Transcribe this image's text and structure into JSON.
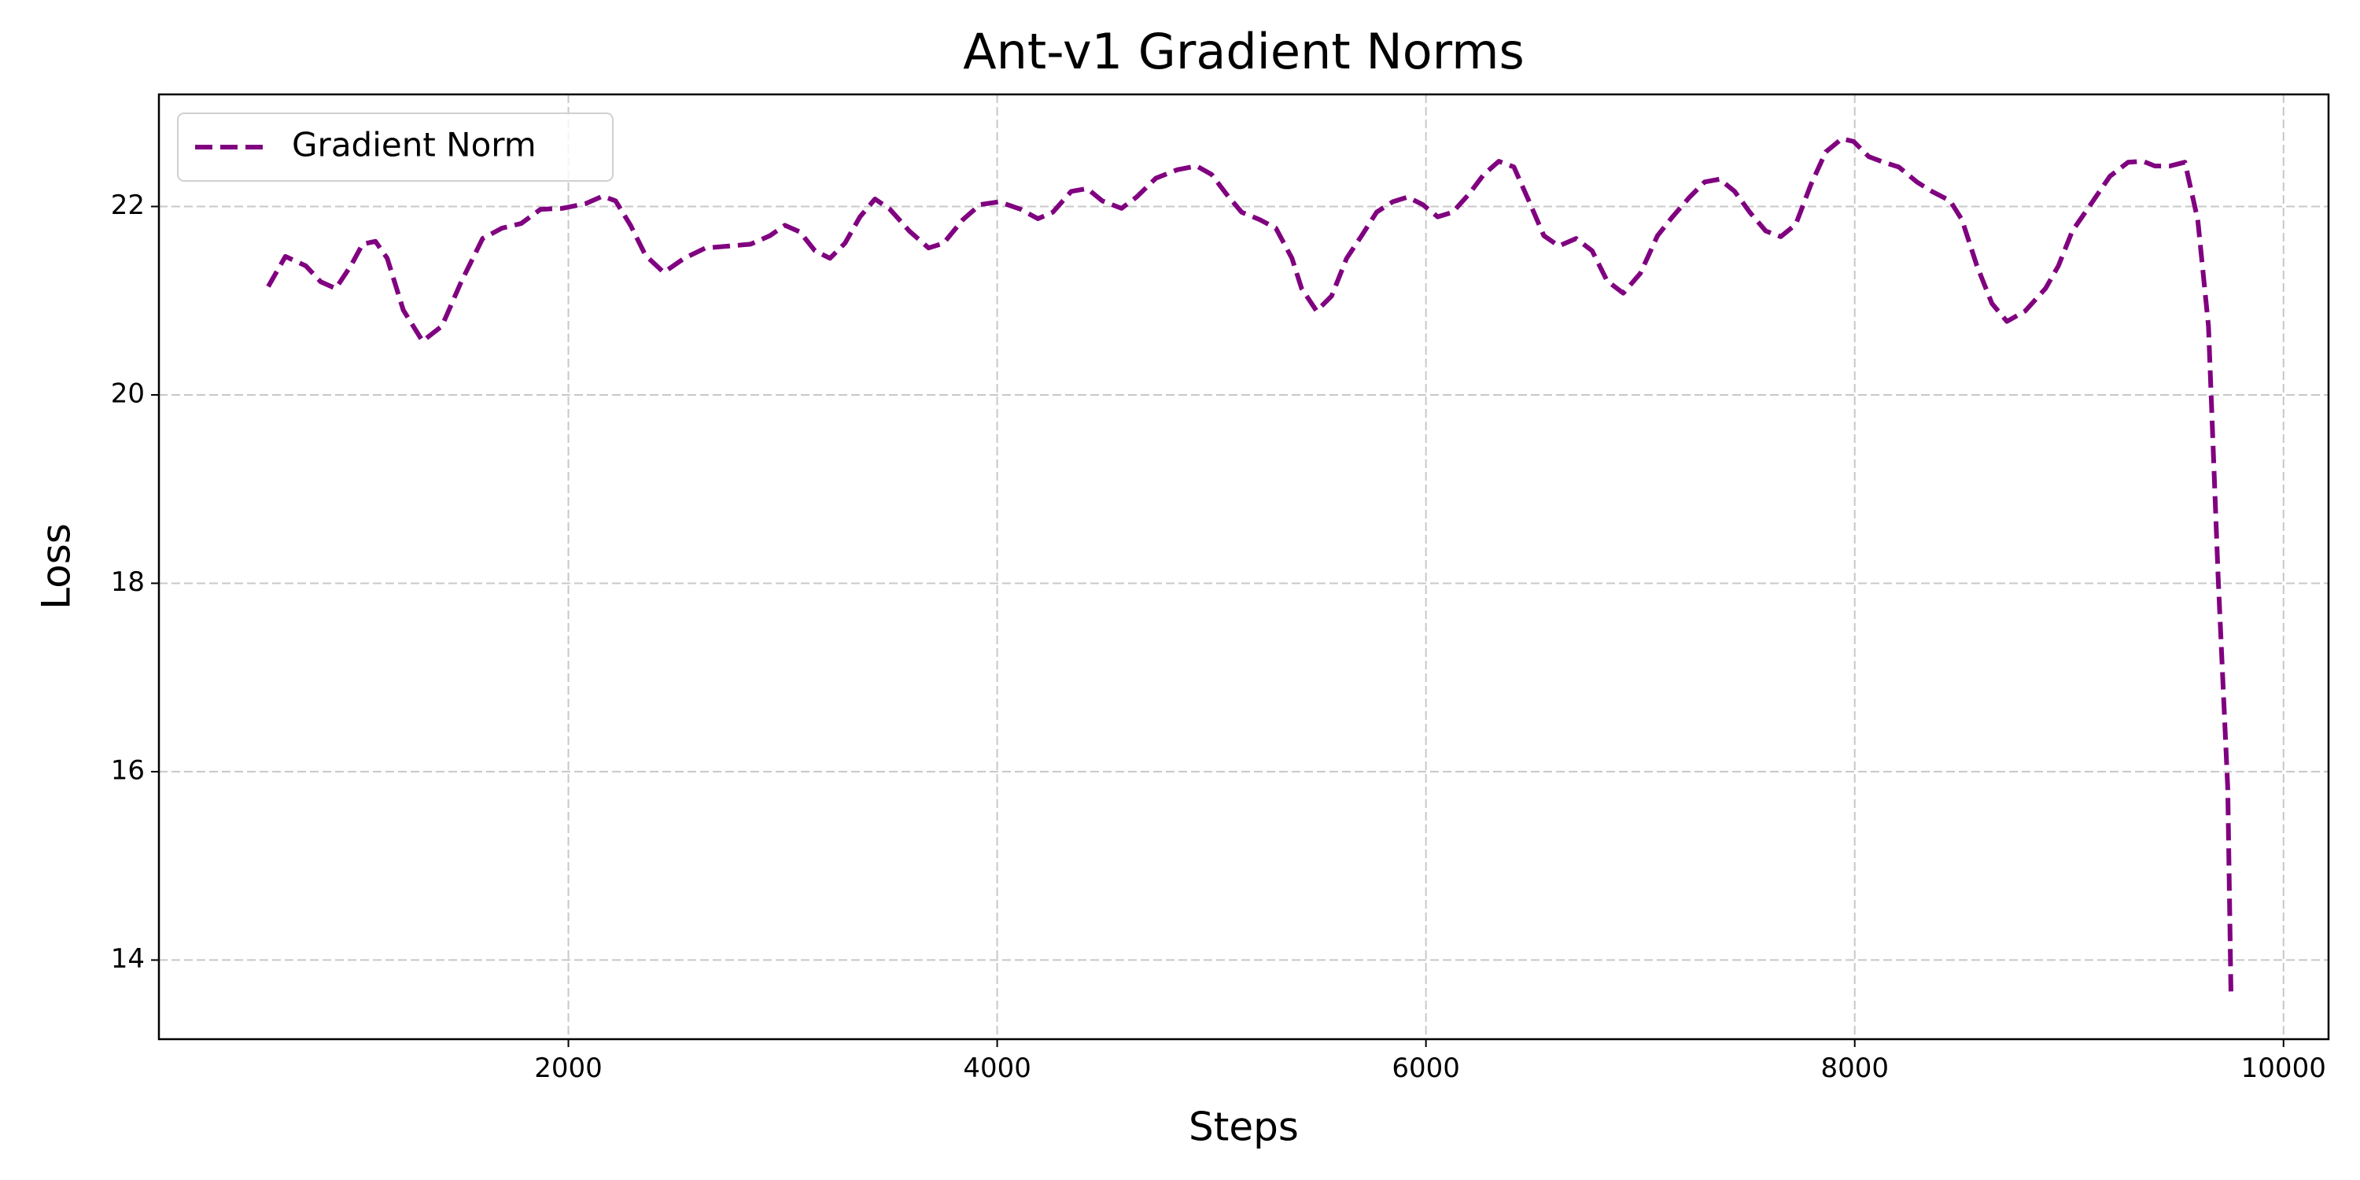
{
  "chart_data": {
    "type": "line",
    "title": "Ant-v1 Gradient Norms",
    "x_label": "Steps",
    "y_label": "Loss",
    "x": [
      600,
      680,
      775,
      845,
      915,
      985,
      1040,
      1100,
      1155,
      1230,
      1320,
      1410,
      1500,
      1600,
      1690,
      1780,
      1870,
      1970,
      2080,
      2160,
      2220,
      2290,
      2360,
      2445,
      2540,
      2640,
      2750,
      2850,
      2940,
      3010,
      3080,
      3150,
      3220,
      3290,
      3360,
      3430,
      3500,
      3590,
      3680,
      3750,
      3840,
      3920,
      4010,
      4110,
      4190,
      4260,
      4345,
      4420,
      4490,
      4580,
      4650,
      4740,
      4840,
      4930,
      5000,
      5070,
      5140,
      5225,
      5300,
      5375,
      5420,
      5490,
      5560,
      5630,
      5700,
      5770,
      5845,
      5915,
      5985,
      6055,
      6125,
      6200,
      6270,
      6340,
      6410,
      6480,
      6550,
      6620,
      6700,
      6775,
      6845,
      6920,
      7000,
      7080,
      7150,
      7230,
      7300,
      7370,
      7440,
      7510,
      7585,
      7655,
      7725,
      7795,
      7865,
      7940,
      7995,
      8065,
      8135,
      8205,
      8290,
      8360,
      8445,
      8500,
      8570,
      8640,
      8710,
      8795,
      8890,
      8950,
      9015,
      9100,
      9190,
      9275,
      9345,
      9400,
      9470,
      9540,
      9600,
      9650,
      9695,
      9740,
      9755
    ],
    "series": [
      {
        "name": "Gradient Norm",
        "color": "#800080",
        "values": [
          21.15,
          21.47,
          21.37,
          21.2,
          21.13,
          21.37,
          21.6,
          21.63,
          21.45,
          20.9,
          20.57,
          20.73,
          21.2,
          21.66,
          21.77,
          21.82,
          21.97,
          21.98,
          22.03,
          22.11,
          22.06,
          21.8,
          21.48,
          21.3,
          21.45,
          21.56,
          21.58,
          21.6,
          21.69,
          21.8,
          21.73,
          21.53,
          21.45,
          21.61,
          21.89,
          22.08,
          21.97,
          21.74,
          21.56,
          21.61,
          21.86,
          22.02,
          22.05,
          21.97,
          21.87,
          21.94,
          22.16,
          22.19,
          22.06,
          21.98,
          22.1,
          22.3,
          22.39,
          22.43,
          22.34,
          22.13,
          21.94,
          21.86,
          21.77,
          21.45,
          21.13,
          20.89,
          21.05,
          21.45,
          21.69,
          21.94,
          22.05,
          22.1,
          22.02,
          21.89,
          21.94,
          22.13,
          22.34,
          22.48,
          22.42,
          22.06,
          21.69,
          21.58,
          21.66,
          21.53,
          21.21,
          21.08,
          21.29,
          21.69,
          21.89,
          22.1,
          22.26,
          22.29,
          22.16,
          21.94,
          21.74,
          21.68,
          21.81,
          22.23,
          22.58,
          22.72,
          22.69,
          22.53,
          22.47,
          22.42,
          22.26,
          22.16,
          22.06,
          21.86,
          21.37,
          20.97,
          20.78,
          20.89,
          21.13,
          21.37,
          21.74,
          22.02,
          22.32,
          22.47,
          22.48,
          22.43,
          22.43,
          22.47,
          21.86,
          20.73,
          18.07,
          15.82,
          13.64
        ]
      }
    ],
    "xlim": [
      90,
      10210
    ],
    "ylim": [
      13.16,
      23.19
    ],
    "xticks": [
      2000,
      4000,
      6000,
      8000,
      10000
    ],
    "yticks": [
      14,
      16,
      18,
      20,
      22
    ],
    "grid": true,
    "legend": "upper left"
  }
}
